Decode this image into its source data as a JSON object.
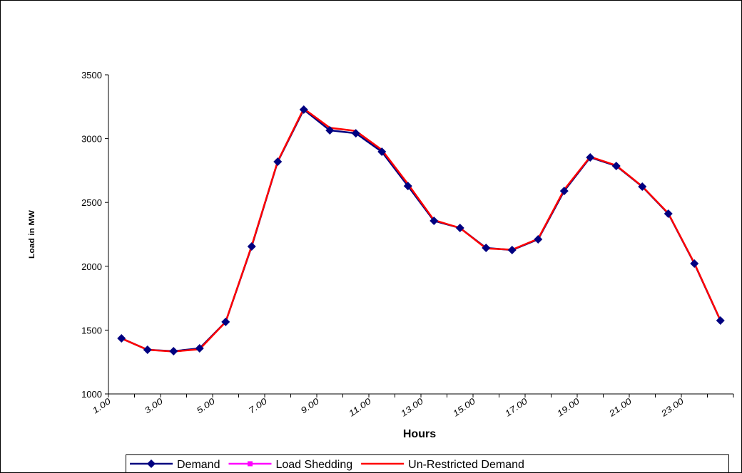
{
  "chart_data": {
    "type": "line",
    "x_label": "Hours",
    "y_label": "Load in MW",
    "categories": [
      "1.00",
      null,
      "3.00",
      null,
      "5.00",
      null,
      "7.00",
      null,
      "9.00",
      null,
      "11.00",
      null,
      "13.00",
      null,
      "15.00",
      null,
      "17.00",
      null,
      "19.00",
      null,
      "21.00",
      null,
      "23.00",
      null
    ],
    "series": [
      {
        "name": "Demand",
        "color": "#000080",
        "marker": "diamond",
        "values": [
          1435,
          1346,
          1335,
          1357,
          1564,
          2155,
          2819,
          3227,
          3065,
          3042,
          2897,
          2629,
          2356,
          2300,
          2144,
          2127,
          2211,
          2590,
          2853,
          2786,
          2624,
          2412,
          2021,
          1575
        ]
      },
      {
        "name": "Load Shedding",
        "color": "#ff00ff",
        "marker": "square",
        "values": [
          null,
          null,
          null,
          null,
          null,
          null,
          null,
          null,
          null,
          null,
          null,
          null,
          null,
          null,
          null,
          null,
          null,
          null,
          null,
          null,
          null,
          null,
          null,
          null
        ]
      },
      {
        "name": "Un-Restricted Demand",
        "color": "#ff0000",
        "marker": "none",
        "values": [
          1435,
          1346,
          1332,
          1350,
          1564,
          2160,
          2822,
          3235,
          3085,
          3060,
          2912,
          2645,
          2362,
          2300,
          2140,
          2130,
          2215,
          2600,
          2858,
          2790,
          2626,
          2415,
          2024,
          1577
        ]
      }
    ],
    "ylim": [
      1000,
      3500
    ],
    "yticks": [
      1000,
      1500,
      2000,
      2500,
      3000,
      3500
    ],
    "grid": false
  }
}
